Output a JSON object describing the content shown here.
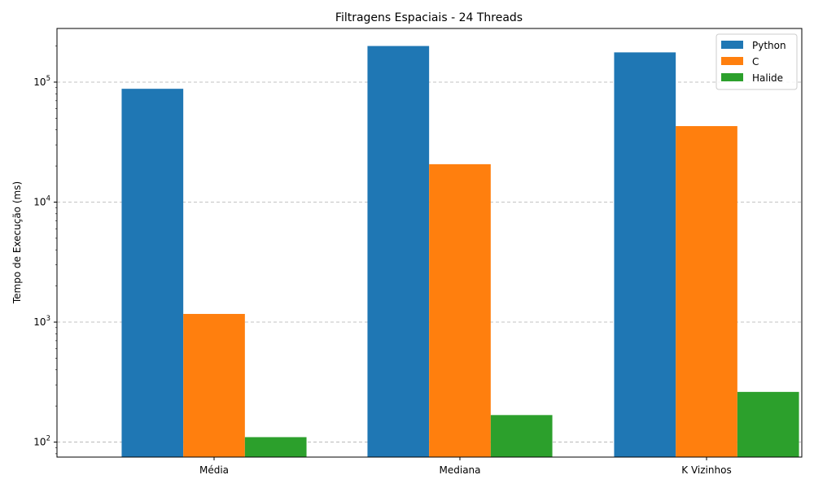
{
  "chart_data": {
    "type": "bar",
    "title": "Filtragens Espaciais - 24 Threads",
    "xlabel": "",
    "ylabel": "Tempo de Execução (ms)",
    "yscale": "log",
    "ylim": [
      75,
      280000
    ],
    "yticks": [
      100,
      1000,
      10000,
      100000
    ],
    "ytick_labels": [
      {
        "base": "10",
        "exp": "2"
      },
      {
        "base": "10",
        "exp": "3"
      },
      {
        "base": "10",
        "exp": "4"
      },
      {
        "base": "10",
        "exp": "5"
      }
    ],
    "grid": "y-dashed",
    "legend_position": "top-right",
    "categories": [
      "Média",
      "Mediana",
      "K Vizinhos"
    ],
    "series": [
      {
        "name": "Python",
        "color": "#1f77b4",
        "values": [
          88000,
          200000,
          177000
        ]
      },
      {
        "name": "C",
        "color": "#ff7f0e",
        "values": [
          1170,
          20700,
          43000
        ]
      },
      {
        "name": "Halide",
        "color": "#2ca02c",
        "values": [
          110,
          168,
          262
        ]
      }
    ]
  }
}
